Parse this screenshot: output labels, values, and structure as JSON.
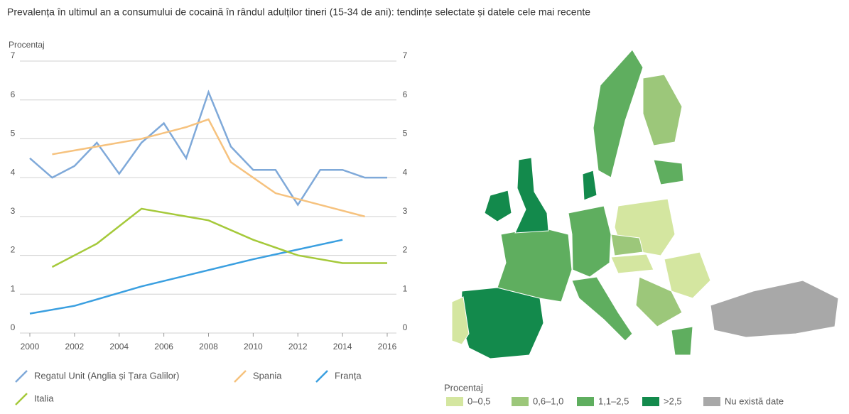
{
  "chart_data": {
    "type": "line",
    "title": "Prevalența în ultimul an a consumului de cocaină în rândul adulților tineri (15-34 de ani): tendințe selectate și datele cele mai recente",
    "y_label": "Procentaj",
    "xlim": [
      2000,
      2016
    ],
    "xticks": [
      2000,
      2002,
      2004,
      2006,
      2008,
      2010,
      2012,
      2014,
      2016
    ],
    "ylim": [
      0,
      7
    ],
    "yticks": [
      0,
      1,
      2,
      3,
      4,
      5,
      6,
      7
    ],
    "y2lim": [
      0,
      7
    ],
    "y2ticks": [
      0,
      1,
      2,
      3,
      4,
      5,
      6,
      7
    ],
    "grid": true,
    "series": [
      {
        "name": "Regatul Unit (Anglia și Țara Galilor)",
        "color": "#7fa9d9",
        "x": [
          2000,
          2001,
          2002,
          2003,
          2004,
          2005,
          2006,
          2007,
          2008,
          2009,
          2010,
          2011,
          2012,
          2013,
          2014,
          2015,
          2016
        ],
        "values": [
          4.5,
          4.0,
          4.3,
          4.9,
          4.1,
          4.9,
          5.4,
          4.5,
          6.2,
          4.8,
          4.2,
          4.2,
          3.3,
          4.2,
          4.2,
          4.0,
          4.0
        ]
      },
      {
        "name": "Spania",
        "color": "#f6c27e",
        "x": [
          2001,
          2003,
          2005,
          2007,
          2008,
          2009,
          2011,
          2013,
          2015
        ],
        "values": [
          4.6,
          4.8,
          5.0,
          5.3,
          5.5,
          4.4,
          3.6,
          3.3,
          3.0
        ]
      },
      {
        "name": "Franța",
        "color": "#3a9fe0",
        "x": [
          2000,
          2002,
          2005,
          2010,
          2014
        ],
        "values": [
          0.5,
          0.7,
          1.2,
          1.9,
          2.4
        ]
      },
      {
        "name": "Italia",
        "color": "#a5c93a",
        "x": [
          2001,
          2003,
          2005,
          2008,
          2010,
          2012,
          2014,
          2016
        ],
        "values": [
          1.7,
          2.3,
          3.2,
          2.9,
          2.4,
          2.0,
          1.8,
          1.8
        ]
      }
    ]
  },
  "map": {
    "legend_title": "Procentaj",
    "classes": [
      {
        "label": "0–0,5",
        "color": "#d4e6a0"
      },
      {
        "label": "0,6–1,0",
        "color": "#9cc77a"
      },
      {
        "label": "1,1–2,5",
        "color": "#5fae5f"
      },
      {
        "label": ">2,5",
        "color": "#138a4c"
      },
      {
        "label": "Nu există date",
        "color": "#a8a8a8"
      }
    ]
  }
}
